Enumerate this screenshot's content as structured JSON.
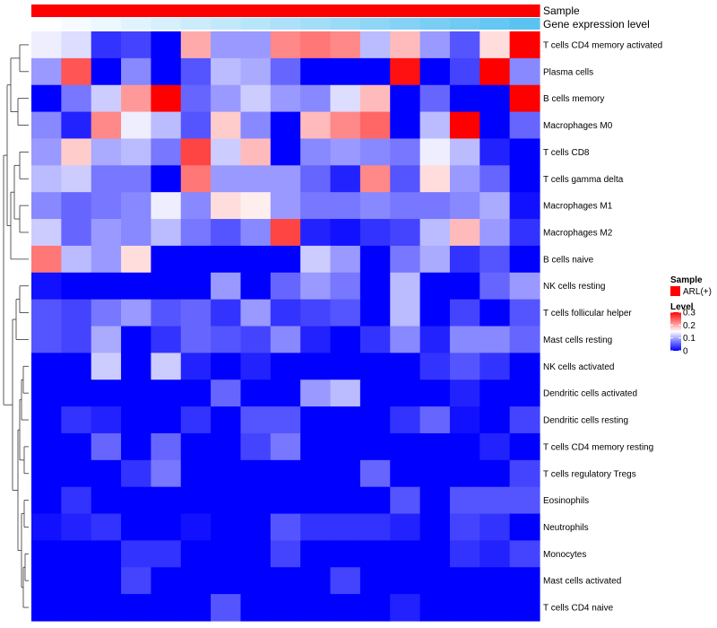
{
  "chart_data": {
    "type": "heatmap",
    "title": "",
    "annotation_tracks": [
      {
        "name": "Sample",
        "kind": "categorical"
      },
      {
        "name": "Gene expression level",
        "kind": "gradient"
      }
    ],
    "legend": {
      "sample_title": "Sample",
      "sample_entries": [
        {
          "label": "ARL(+)",
          "color": "#ff0000"
        }
      ],
      "level_title": "Level",
      "level_ticks": [
        "0.3",
        "0.2",
        "0.1",
        "0"
      ],
      "level_range": [
        0,
        0.3
      ]
    },
    "colors": {
      "low": "#0000ff",
      "mid": "#ffffff",
      "high": "#ff0000",
      "sample_bar": "#ff0000",
      "expr_low": "#ffffff",
      "expr_high": "#5bc3f2"
    },
    "rows": [
      "T cells CD4 memory activated",
      "Plasma cells",
      "B cells memory",
      "Macrophages M0",
      "T cells CD8",
      "T cells gamma delta",
      "Macrophages M1",
      "Macrophages M2",
      "B cells naive",
      "NK cells resting",
      "T cells follicular helper",
      "Mast cells resting",
      "NK cells activated",
      "Dendritic cells activated",
      "Dendritic cells resting",
      "T cells CD4 memory resting",
      "T cells regulatory  Tregs",
      "Eosinophils",
      "Neutrophils",
      "Monocytes",
      "Mast cells activated",
      "T cells CD4 naive"
    ],
    "values": [
      [
        0.14,
        0.13,
        0.03,
        0.04,
        0.0,
        0.2,
        0.09,
        0.09,
        0.22,
        0.23,
        0.22,
        0.11,
        0.19,
        0.09,
        0.05,
        0.17,
        0.3
      ],
      [
        0.09,
        0.25,
        0.0,
        0.08,
        0.0,
        0.05,
        0.11,
        0.1,
        0.06,
        0.0,
        0.0,
        0.0,
        0.29,
        0.0,
        0.04,
        0.3,
        0.08
      ],
      [
        0.0,
        0.07,
        0.12,
        0.21,
        0.3,
        0.06,
        0.09,
        0.12,
        0.09,
        0.08,
        0.13,
        0.19,
        0.0,
        0.06,
        0.0,
        0.0,
        0.3
      ],
      [
        0.08,
        0.02,
        0.22,
        0.14,
        0.11,
        0.05,
        0.18,
        0.08,
        0.0,
        0.19,
        0.22,
        0.24,
        0.0,
        0.11,
        0.3,
        0.0,
        0.06
      ],
      [
        0.09,
        0.18,
        0.1,
        0.11,
        0.07,
        0.26,
        0.12,
        0.19,
        0.0,
        0.08,
        0.09,
        0.08,
        0.07,
        0.14,
        0.11,
        0.02,
        0.0
      ],
      [
        0.11,
        0.12,
        0.07,
        0.07,
        0.0,
        0.23,
        0.09,
        0.09,
        0.09,
        0.06,
        0.02,
        0.22,
        0.05,
        0.17,
        0.09,
        0.06,
        0.0
      ],
      [
        0.08,
        0.06,
        0.07,
        0.08,
        0.14,
        0.08,
        0.17,
        0.16,
        0.09,
        0.07,
        0.07,
        0.08,
        0.07,
        0.07,
        0.08,
        0.1,
        0.01
      ],
      [
        0.12,
        0.06,
        0.09,
        0.08,
        0.11,
        0.07,
        0.05,
        0.08,
        0.26,
        0.02,
        0.01,
        0.03,
        0.04,
        0.11,
        0.19,
        0.09,
        0.03
      ],
      [
        0.23,
        0.11,
        0.09,
        0.17,
        0.0,
        0.0,
        0.0,
        0.0,
        0.0,
        0.12,
        0.09,
        0.0,
        0.07,
        0.1,
        0.03,
        0.05,
        0.0
      ],
      [
        0.01,
        0.0,
        0.0,
        0.0,
        0.0,
        0.0,
        0.09,
        0.0,
        0.06,
        0.09,
        0.07,
        0.0,
        0.11,
        0.0,
        0.0,
        0.06,
        0.09
      ],
      [
        0.05,
        0.04,
        0.07,
        0.09,
        0.05,
        0.06,
        0.03,
        0.09,
        0.03,
        0.04,
        0.05,
        0.0,
        0.11,
        0.0,
        0.04,
        0.0,
        0.05
      ],
      [
        0.05,
        0.04,
        0.1,
        0.0,
        0.03,
        0.06,
        0.05,
        0.04,
        0.08,
        0.02,
        0.0,
        0.03,
        0.08,
        0.02,
        0.08,
        0.08,
        0.06
      ],
      [
        0.0,
        0.0,
        0.12,
        0.0,
        0.12,
        0.02,
        0.0,
        0.02,
        0.0,
        0.0,
        0.0,
        0.0,
        0.0,
        0.03,
        0.05,
        0.03,
        0.0
      ],
      [
        0.0,
        0.0,
        0.0,
        0.0,
        0.0,
        0.0,
        0.06,
        0.0,
        0.0,
        0.09,
        0.11,
        0.0,
        0.0,
        0.0,
        0.02,
        0.0,
        0.0
      ],
      [
        0.0,
        0.03,
        0.02,
        0.0,
        0.0,
        0.03,
        0.0,
        0.05,
        0.05,
        0.0,
        0.0,
        0.0,
        0.03,
        0.06,
        0.01,
        0.0,
        0.04
      ],
      [
        0.0,
        0.0,
        0.06,
        0.0,
        0.06,
        0.0,
        0.0,
        0.04,
        0.07,
        0.0,
        0.0,
        0.0,
        0.0,
        0.0,
        0.0,
        0.02,
        0.0
      ],
      [
        0.0,
        0.0,
        0.0,
        0.03,
        0.07,
        0.0,
        0.0,
        0.0,
        0.0,
        0.0,
        0.0,
        0.06,
        0.0,
        0.0,
        0.0,
        0.0,
        0.04
      ],
      [
        0.0,
        0.03,
        0.0,
        0.0,
        0.0,
        0.0,
        0.0,
        0.0,
        0.0,
        0.0,
        0.0,
        0.0,
        0.05,
        0.0,
        0.05,
        0.05,
        0.05
      ],
      [
        0.01,
        0.02,
        0.03,
        0.0,
        0.0,
        0.01,
        0.0,
        0.0,
        0.05,
        0.03,
        0.03,
        0.03,
        0.02,
        0.0,
        0.04,
        0.03,
        0.0
      ],
      [
        0.0,
        0.0,
        0.0,
        0.03,
        0.03,
        0.0,
        0.0,
        0.0,
        0.04,
        0.0,
        0.0,
        0.0,
        0.0,
        0.0,
        0.03,
        0.02,
        0.04
      ],
      [
        0.0,
        0.0,
        0.0,
        0.04,
        0.0,
        0.0,
        0.0,
        0.0,
        0.0,
        0.0,
        0.04,
        0.0,
        0.0,
        0.0,
        0.0,
        0.0,
        0.0
      ],
      [
        0.0,
        0.0,
        0.0,
        0.0,
        0.0,
        0.0,
        0.05,
        0.0,
        0.0,
        0.0,
        0.0,
        0.0,
        0.02,
        0.0,
        0.0,
        0.0,
        0.0
      ]
    ],
    "sample_annotation": [
      "ARL(+)",
      "ARL(+)",
      "ARL(+)",
      "ARL(+)",
      "ARL(+)",
      "ARL(+)",
      "ARL(+)",
      "ARL(+)",
      "ARL(+)",
      "ARL(+)",
      "ARL(+)",
      "ARL(+)",
      "ARL(+)",
      "ARL(+)",
      "ARL(+)",
      "ARL(+)",
      "ARL(+)"
    ],
    "expression_annotation": [
      0.0,
      0.06,
      0.12,
      0.19,
      0.25,
      0.31,
      0.37,
      0.44,
      0.5,
      0.56,
      0.62,
      0.69,
      0.75,
      0.81,
      0.87,
      0.94,
      1.0
    ]
  }
}
